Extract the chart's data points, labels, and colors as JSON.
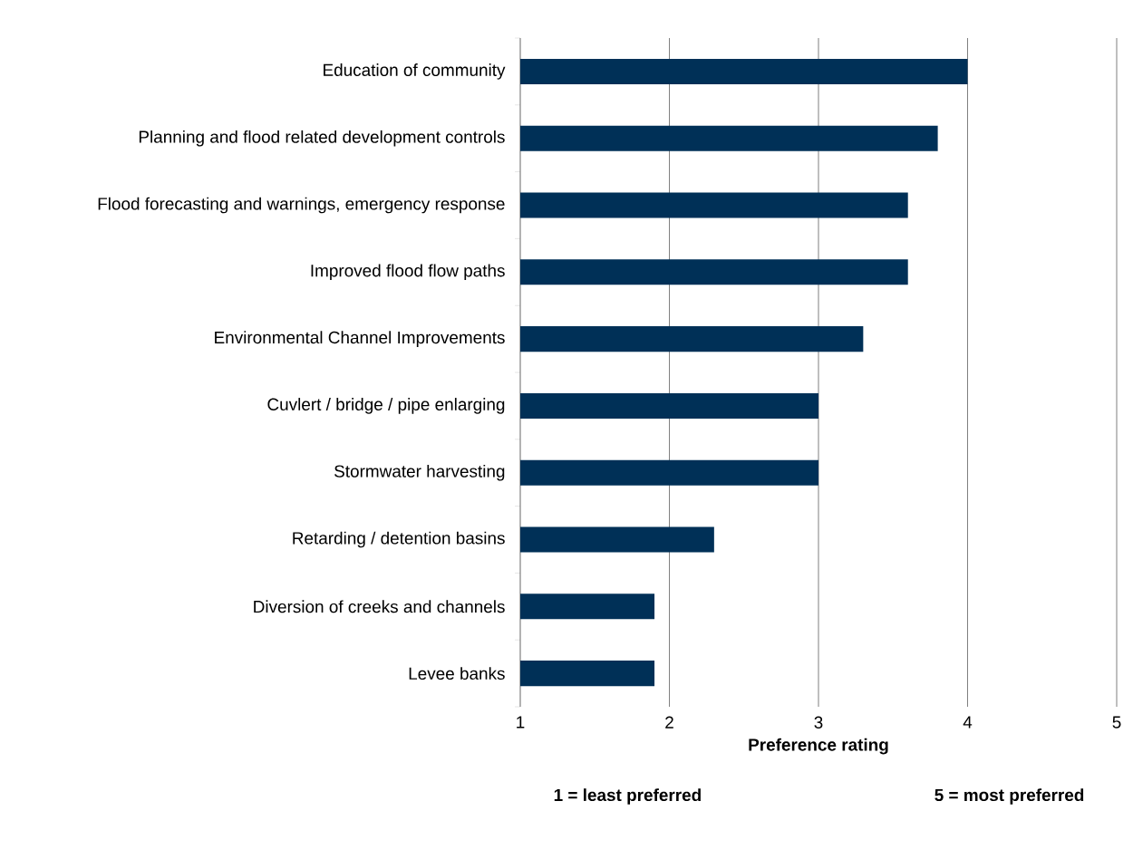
{
  "chart_data": {
    "type": "bar",
    "orientation": "horizontal",
    "xlabel": "Preference rating",
    "categories": [
      "Education of community",
      "Planning and flood related development controls",
      "Flood forecasting and warnings, emergency response",
      "Improved flood flow paths",
      "Environmental Channel Improvements",
      "Cuvlert / bridge / pipe enlarging",
      "Stormwater harvesting",
      "Retarding / detention basins",
      "Diversion of creeks and channels",
      "Levee banks"
    ],
    "values": [
      4.0,
      3.8,
      3.6,
      3.6,
      3.3,
      3.0,
      3.0,
      2.3,
      1.9,
      1.9
    ],
    "color": "#003057",
    "xlim": [
      1,
      5
    ],
    "xticks": [
      1,
      2,
      3,
      4,
      5
    ],
    "grid": "x",
    "annotations": [
      "1 = least preferred",
      "5 = most preferred"
    ]
  }
}
